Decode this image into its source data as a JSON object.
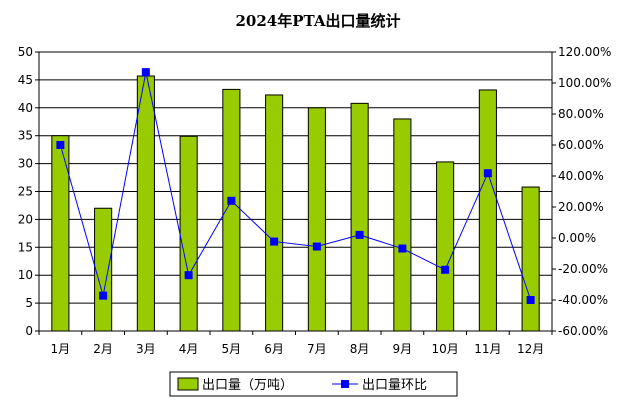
{
  "chart_data": {
    "type": "bar",
    "title": "2024年PTA出口量统计",
    "categories": [
      "1月",
      "2月",
      "3月",
      "4月",
      "5月",
      "6月",
      "7月",
      "8月",
      "9月",
      "10月",
      "11月",
      "12月"
    ],
    "series": [
      {
        "name": "出口量（万吨）",
        "type": "bar",
        "axis": "left",
        "values": [
          35.0,
          22.0,
          45.7,
          34.9,
          43.3,
          42.3,
          40.0,
          40.8,
          38.0,
          30.3,
          43.2,
          25.8
        ],
        "color": "#99cc00"
      },
      {
        "name": "出口量环比",
        "type": "line",
        "axis": "right",
        "unit": "%",
        "values": [
          60.0,
          -37.2,
          107.0,
          -24.0,
          24.0,
          -2.3,
          -5.5,
          2.0,
          -6.8,
          -20.5,
          41.8,
          -40.0
        ],
        "color": "#0000ff"
      }
    ],
    "ylim": [
      0,
      50
    ],
    "y2lim": [
      -60,
      120
    ],
    "yticks": [
      "0",
      "5",
      "10",
      "15",
      "20",
      "25",
      "30",
      "35",
      "40",
      "45",
      "50"
    ],
    "y2ticks": [
      "-60.00%",
      "-40.00%",
      "-20.00%",
      "0.00%",
      "20.00%",
      "40.00%",
      "60.00%",
      "80.00%",
      "100.00%",
      "120.00%"
    ],
    "grid": true,
    "legend_position": "bottom"
  }
}
